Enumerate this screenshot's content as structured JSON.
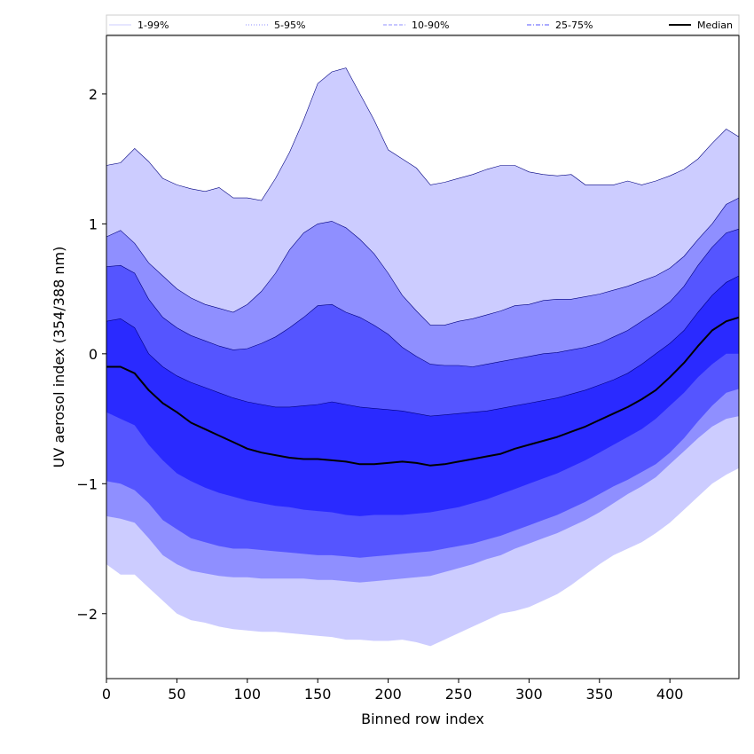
{
  "chart_data": {
    "type": "area",
    "xlabel": "Binned row index",
    "ylabel": "UV aerosol index (354/388 nm)",
    "xlim": [
      0,
      449
    ],
    "ylim": [
      -2.5,
      2.45
    ],
    "xticks": [
      0,
      50,
      100,
      150,
      200,
      250,
      300,
      350,
      400
    ],
    "yticks": [
      -2,
      -1,
      0,
      1,
      2
    ],
    "ytick_labels": [
      "−2",
      "−1",
      "0",
      "1",
      "2"
    ],
    "grid": false,
    "legend_position": "top",
    "legend": [
      {
        "label": "1-99%",
        "color": "#ccccff",
        "style": "solid"
      },
      {
        "label": "5-95%",
        "color": "#8f8fff",
        "style": "dotted"
      },
      {
        "label": "10-90%",
        "color": "#5555ff",
        "style": "dashed"
      },
      {
        "label": "25-75%",
        "color": "#2a2aff",
        "style": "dashdot"
      },
      {
        "label": "Median",
        "color": "#000000",
        "style": "solid"
      }
    ],
    "x": [
      0,
      10,
      20,
      30,
      40,
      50,
      60,
      70,
      80,
      90,
      100,
      110,
      120,
      130,
      140,
      150,
      160,
      170,
      180,
      190,
      200,
      210,
      220,
      230,
      240,
      250,
      260,
      270,
      280,
      290,
      300,
      310,
      320,
      330,
      340,
      350,
      360,
      370,
      380,
      390,
      400,
      410,
      420,
      430,
      440,
      449
    ],
    "series": [
      {
        "name": "1-99%",
        "color": "#ccccff",
        "lower": [
          -1.62,
          -1.7,
          -1.7,
          -1.8,
          -1.9,
          -2.0,
          -2.05,
          -2.07,
          -2.1,
          -2.12,
          -2.13,
          -2.14,
          -2.14,
          -2.15,
          -2.16,
          -2.17,
          -2.18,
          -2.2,
          -2.2,
          -2.21,
          -2.21,
          -2.2,
          -2.22,
          -2.25,
          -2.2,
          -2.15,
          -2.1,
          -2.05,
          -2.0,
          -1.98,
          -1.95,
          -1.9,
          -1.85,
          -1.78,
          -1.7,
          -1.62,
          -1.55,
          -1.5,
          -1.45,
          -1.38,
          -1.3,
          -1.2,
          -1.1,
          -1.0,
          -0.93,
          -0.88
        ],
        "upper": [
          1.45,
          1.47,
          1.58,
          1.48,
          1.35,
          1.3,
          1.27,
          1.25,
          1.28,
          1.2,
          1.2,
          1.18,
          1.35,
          1.55,
          1.8,
          2.08,
          2.17,
          2.2,
          2.0,
          1.8,
          1.57,
          1.5,
          1.43,
          1.3,
          1.32,
          1.35,
          1.38,
          1.42,
          1.45,
          1.45,
          1.4,
          1.38,
          1.37,
          1.38,
          1.3,
          1.3,
          1.3,
          1.33,
          1.3,
          1.33,
          1.37,
          1.42,
          1.5,
          1.62,
          1.73,
          1.67
        ]
      },
      {
        "name": "5-95%",
        "color": "#8f8fff",
        "lower": [
          -1.25,
          -1.27,
          -1.3,
          -1.42,
          -1.55,
          -1.62,
          -1.67,
          -1.69,
          -1.71,
          -1.72,
          -1.72,
          -1.73,
          -1.73,
          -1.73,
          -1.73,
          -1.74,
          -1.74,
          -1.75,
          -1.76,
          -1.75,
          -1.74,
          -1.73,
          -1.72,
          -1.71,
          -1.68,
          -1.65,
          -1.62,
          -1.58,
          -1.55,
          -1.5,
          -1.46,
          -1.42,
          -1.38,
          -1.33,
          -1.28,
          -1.22,
          -1.15,
          -1.08,
          -1.02,
          -0.95,
          -0.85,
          -0.75,
          -0.65,
          -0.56,
          -0.5,
          -0.48
        ],
        "upper": [
          0.9,
          0.95,
          0.85,
          0.7,
          0.6,
          0.5,
          0.43,
          0.38,
          0.35,
          0.32,
          0.38,
          0.48,
          0.62,
          0.8,
          0.93,
          1.0,
          1.02,
          0.97,
          0.88,
          0.77,
          0.62,
          0.45,
          0.33,
          0.22,
          0.22,
          0.25,
          0.27,
          0.3,
          0.33,
          0.37,
          0.38,
          0.41,
          0.42,
          0.42,
          0.44,
          0.46,
          0.49,
          0.52,
          0.56,
          0.6,
          0.66,
          0.75,
          0.88,
          1.0,
          1.15,
          1.2
        ]
      },
      {
        "name": "10-90%",
        "color": "#5555ff",
        "lower": [
          -0.98,
          -1.0,
          -1.05,
          -1.15,
          -1.28,
          -1.35,
          -1.42,
          -1.45,
          -1.48,
          -1.5,
          -1.5,
          -1.51,
          -1.52,
          -1.53,
          -1.54,
          -1.55,
          -1.55,
          -1.56,
          -1.57,
          -1.56,
          -1.55,
          -1.54,
          -1.53,
          -1.52,
          -1.5,
          -1.48,
          -1.46,
          -1.43,
          -1.4,
          -1.36,
          -1.32,
          -1.28,
          -1.24,
          -1.19,
          -1.14,
          -1.08,
          -1.02,
          -0.97,
          -0.91,
          -0.85,
          -0.76,
          -0.65,
          -0.52,
          -0.4,
          -0.3,
          -0.27
        ],
        "upper": [
          0.67,
          0.68,
          0.62,
          0.42,
          0.28,
          0.2,
          0.14,
          0.1,
          0.06,
          0.03,
          0.04,
          0.08,
          0.13,
          0.2,
          0.28,
          0.37,
          0.38,
          0.32,
          0.28,
          0.22,
          0.15,
          0.05,
          -0.02,
          -0.08,
          -0.09,
          -0.09,
          -0.1,
          -0.08,
          -0.06,
          -0.04,
          -0.02,
          0.0,
          0.01,
          0.03,
          0.05,
          0.08,
          0.13,
          0.18,
          0.25,
          0.32,
          0.4,
          0.52,
          0.68,
          0.82,
          0.93,
          0.96
        ]
      },
      {
        "name": "25-75%",
        "color": "#2a2aff",
        "lower": [
          -0.45,
          -0.5,
          -0.55,
          -0.7,
          -0.82,
          -0.92,
          -0.98,
          -1.03,
          -1.07,
          -1.1,
          -1.13,
          -1.15,
          -1.17,
          -1.18,
          -1.2,
          -1.21,
          -1.22,
          -1.24,
          -1.25,
          -1.24,
          -1.24,
          -1.24,
          -1.23,
          -1.22,
          -1.2,
          -1.18,
          -1.15,
          -1.12,
          -1.08,
          -1.04,
          -1.0,
          -0.96,
          -0.92,
          -0.87,
          -0.82,
          -0.76,
          -0.7,
          -0.64,
          -0.58,
          -0.5,
          -0.4,
          -0.3,
          -0.18,
          -0.08,
          0.0,
          0.0
        ],
        "upper": [
          0.25,
          0.27,
          0.2,
          0.0,
          -0.1,
          -0.17,
          -0.22,
          -0.26,
          -0.3,
          -0.34,
          -0.37,
          -0.39,
          -0.41,
          -0.41,
          -0.4,
          -0.39,
          -0.37,
          -0.39,
          -0.41,
          -0.42,
          -0.43,
          -0.44,
          -0.46,
          -0.48,
          -0.47,
          -0.46,
          -0.45,
          -0.44,
          -0.42,
          -0.4,
          -0.38,
          -0.36,
          -0.34,
          -0.31,
          -0.28,
          -0.24,
          -0.2,
          -0.15,
          -0.08,
          0.0,
          0.08,
          0.18,
          0.32,
          0.45,
          0.55,
          0.6
        ]
      },
      {
        "name": "Median",
        "color": "#000000",
        "values": [
          -0.1,
          -0.1,
          -0.15,
          -0.28,
          -0.38,
          -0.45,
          -0.53,
          -0.58,
          -0.63,
          -0.68,
          -0.73,
          -0.76,
          -0.78,
          -0.8,
          -0.81,
          -0.81,
          -0.82,
          -0.83,
          -0.85,
          -0.85,
          -0.84,
          -0.83,
          -0.84,
          -0.86,
          -0.85,
          -0.83,
          -0.81,
          -0.79,
          -0.77,
          -0.73,
          -0.7,
          -0.67,
          -0.64,
          -0.6,
          -0.56,
          -0.51,
          -0.46,
          -0.41,
          -0.35,
          -0.28,
          -0.18,
          -0.07,
          0.06,
          0.18,
          0.25,
          0.28
        ]
      }
    ]
  }
}
